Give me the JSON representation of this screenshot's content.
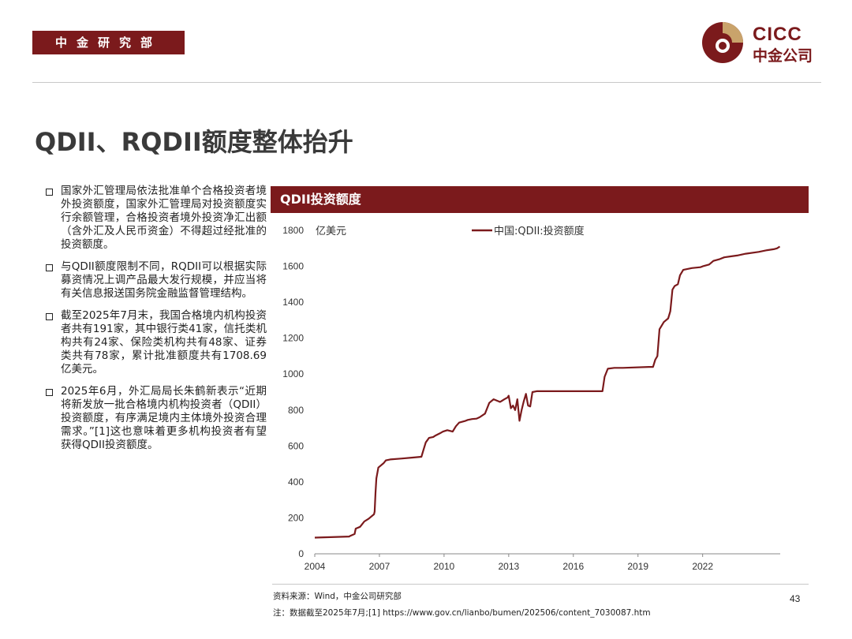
{
  "header": {
    "department": "中金研究部",
    "logo_en": "CICC",
    "logo_cn": "中金公司"
  },
  "title": "QDII、RQDII额度整体抬升",
  "bullets": [
    {
      "text": "国家外汇管理局依法批准单个合格投资者境外投资额度，国家外汇管理局对投资额度实行余额管理，合格投资者境外投资净汇出额（含外汇及人民币资金）不得超过经批准的投资额度。"
    },
    {
      "text": "与QDII额度限制不同，RQDII可以根据实际募资情况上调产品最大发行规模，并应当将有关信息报送国务院金融监督管理结构。"
    },
    {
      "text": "截至2025年7月末，我国合格境内机构投资者共有191家，其中银行类41家，信托类机构共有24家、保险类机构共有48家、证券类共有78家，累计批准额度共有1708.69亿美元。"
    },
    {
      "text": "2025年6月，外汇局局长朱鹤新表示“近期将新发放一批合格境内机构投资者（QDII）投资额度，有序满足境内主体境外投资合理需求。”[1]这也意味着更多机构投资者有望获得QDII投资额度。"
    }
  ],
  "chart_header": "QDII投资额度",
  "chart_data": {
    "type": "line",
    "title": "QDII投资额度",
    "ylabel": "亿美元",
    "xlabel": "",
    "ylim": [
      0,
      1800
    ],
    "xlim": [
      2004,
      2025.6
    ],
    "y_ticks": [
      0,
      200,
      400,
      600,
      800,
      1000,
      1200,
      1400,
      1600,
      1800
    ],
    "x_ticks": [
      "2004",
      "2007",
      "2010",
      "2013",
      "2016",
      "2019",
      "2022"
    ],
    "legend_position": "top",
    "color": "#7b1a1c",
    "series": [
      {
        "name": "中国:QDII:投资额度",
        "x": [
          2004.0,
          2005.6,
          2005.65,
          2005.85,
          2005.9,
          2006.1,
          2006.2,
          2006.3,
          2006.5,
          2006.6,
          2006.75,
          2006.78,
          2006.82,
          2006.86,
          2006.95,
          2007.05,
          2007.2,
          2007.3,
          2007.5,
          2008.0,
          2008.5,
          2008.95,
          2009.05,
          2009.15,
          2009.3,
          2009.5,
          2009.6,
          2009.8,
          2009.95,
          2010.15,
          2010.4,
          2010.55,
          2010.7,
          2011.0,
          2011.1,
          2011.3,
          2011.5,
          2011.65,
          2011.9,
          2012.0,
          2012.1,
          2012.3,
          2012.6,
          2012.8,
          2012.95,
          2013.0,
          2013.1,
          2013.2,
          2013.3,
          2013.4,
          2013.5,
          2013.6,
          2013.7,
          2013.8,
          2013.9,
          2014.0,
          2014.1,
          2014.3,
          2014.5,
          2017.35,
          2017.45,
          2017.6,
          2017.9,
          2018.3,
          2019.5,
          2019.7,
          2019.8,
          2019.9,
          2020.0,
          2020.1,
          2020.2,
          2020.3,
          2020.4,
          2020.5,
          2020.6,
          2020.7,
          2020.85,
          2020.95,
          2021.1,
          2021.5,
          2021.9,
          2022.0,
          2022.3,
          2022.5,
          2022.8,
          2023.0,
          2023.3,
          2023.6,
          2024.0,
          2024.6,
          2025.0,
          2025.3,
          2025.45,
          2025.58
        ],
        "y": [
          90,
          96,
          100,
          110,
          140,
          150,
          165,
          180,
          195,
          205,
          220,
          235,
          340,
          420,
          480,
          490,
          505,
          520,
          525,
          530,
          535,
          540,
          580,
          620,
          645,
          650,
          658,
          670,
          680,
          688,
          680,
          710,
          730,
          740,
          745,
          750,
          752,
          760,
          780,
          810,
          840,
          860,
          845,
          860,
          870,
          880,
          810,
          825,
          800,
          860,
          740,
          800,
          850,
          890,
          825,
          820,
          900,
          905,
          905,
          905,
          985,
          1030,
          1035,
          1035,
          1040,
          1040,
          1080,
          1100,
          1250,
          1270,
          1290,
          1300,
          1310,
          1350,
          1470,
          1490,
          1500,
          1550,
          1580,
          1590,
          1595,
          1600,
          1610,
          1630,
          1640,
          1650,
          1655,
          1660,
          1670,
          1680,
          1690,
          1695,
          1700,
          1710
        ]
      }
    ]
  },
  "footer": {
    "source": "资料来源：Wind，中金公司研究部",
    "note": "注：数据截至2025年7月;[1] https://www.gov.cn/lianbo/bumen/202506/content_7030087.htm",
    "page": "43"
  }
}
